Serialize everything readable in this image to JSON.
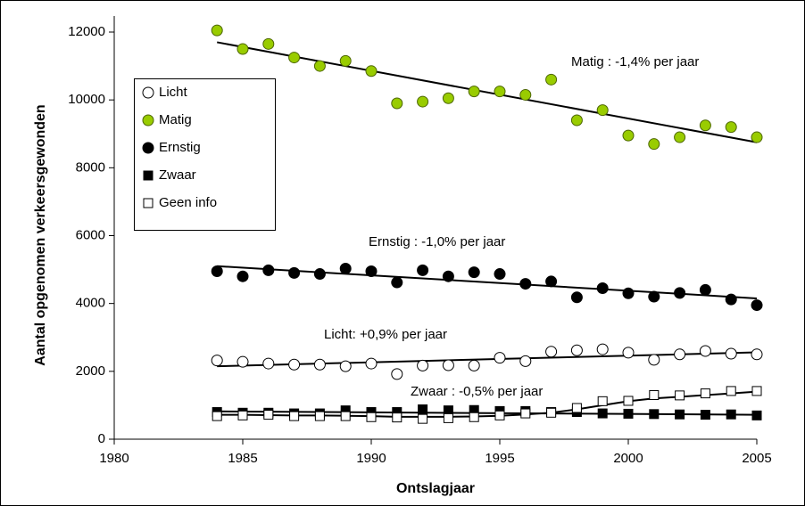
{
  "chart_data": {
    "type": "scatter",
    "x_label": "Ontslagjaar",
    "y_label": "Aantal opgenomen verkeersgewonden",
    "x": [
      1984,
      1985,
      1986,
      1987,
      1988,
      1989,
      1990,
      1991,
      1992,
      1993,
      1994,
      1995,
      1996,
      1997,
      1998,
      1999,
      2000,
      2001,
      2002,
      2003,
      2004,
      2005
    ],
    "xlim": [
      1980,
      2005
    ],
    "xticks": [
      1980,
      1985,
      1990,
      1995,
      2000,
      2005
    ],
    "ylim": [
      0,
      12000
    ],
    "yticks": [
      0,
      2000,
      4000,
      6000,
      8000,
      10000,
      12000
    ],
    "series": [
      {
        "name": "Licht",
        "marker": "circle",
        "color": "#ffffff",
        "values": [
          2320,
          2280,
          2230,
          2200,
          2200,
          2150,
          2230,
          1920,
          2170,
          2180,
          2170,
          2400,
          2300,
          2580,
          2620,
          2650,
          2550,
          2340,
          2500,
          2600,
          2520,
          2500
        ],
        "trend": [
          2150,
          2560
        ]
      },
      {
        "name": "Matig",
        "marker": "circle",
        "color": "#99cc00",
        "values": [
          12050,
          11500,
          11650,
          11250,
          11000,
          11150,
          10850,
          9900,
          9950,
          10050,
          10250,
          10250,
          10150,
          10600,
          9400,
          9700,
          8950,
          8700,
          8900,
          9250,
          9200,
          8900
        ],
        "trend": [
          11700,
          8750
        ]
      },
      {
        "name": "Ernstig",
        "marker": "circle",
        "color": "#000000",
        "values": [
          4950,
          4800,
          4980,
          4900,
          4870,
          5030,
          4950,
          4620,
          4980,
          4800,
          4920,
          4870,
          4580,
          4650,
          4180,
          4450,
          4300,
          4200,
          4310,
          4400,
          4120,
          3950
        ],
        "trend": [
          5100,
          4150
        ]
      },
      {
        "name": "Zwaar",
        "marker": "square",
        "color": "#000000",
        "values": [
          800,
          780,
          780,
          760,
          760,
          850,
          800,
          800,
          880,
          850,
          860,
          830,
          830,
          800,
          800,
          760,
          750,
          740,
          730,
          720,
          730,
          700
        ],
        "trend": [
          820,
          720
        ]
      },
      {
        "name": "Geen info",
        "marker": "square",
        "color": "#ffffff",
        "values": [
          680,
          700,
          720,
          680,
          680,
          680,
          650,
          640,
          600,
          620,
          650,
          700,
          760,
          780,
          920,
          1120,
          1130,
          1300,
          1290,
          1350,
          1420,
          1420
        ],
        "trend": [
          720,
          720,
          710,
          700,
          700,
          690,
          680,
          660,
          660,
          660,
          670,
          690,
          730,
          780,
          880,
          1000,
          1120,
          1200,
          1250,
          1300,
          1350,
          1400
        ]
      }
    ],
    "annotations": [
      "Matig : -1,4% per jaar",
      "Ernstig : -1,0% per jaar",
      "Licht: +0,9% per jaar",
      "Zwaar : -0,5% per jaar"
    ]
  }
}
